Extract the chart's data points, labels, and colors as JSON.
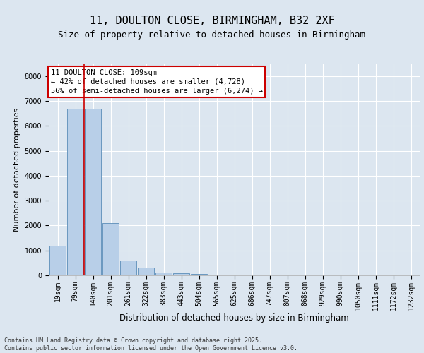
{
  "title1": "11, DOULTON CLOSE, BIRMINGHAM, B32 2XF",
  "title2": "Size of property relative to detached houses in Birmingham",
  "xlabel": "Distribution of detached houses by size in Birmingham",
  "ylabel": "Number of detached properties",
  "categories": [
    "19sqm",
    "79sqm",
    "140sqm",
    "201sqm",
    "261sqm",
    "322sqm",
    "383sqm",
    "443sqm",
    "504sqm",
    "565sqm",
    "625sqm",
    "686sqm",
    "747sqm",
    "807sqm",
    "868sqm",
    "929sqm",
    "990sqm",
    "1050sqm",
    "1111sqm",
    "1172sqm",
    "1232sqm"
  ],
  "values": [
    1200,
    6700,
    6700,
    2100,
    600,
    300,
    100,
    75,
    50,
    30,
    20,
    10,
    8,
    5,
    4,
    3,
    2,
    1,
    1,
    0,
    0
  ],
  "bar_color": "#b8cfe8",
  "bar_edge_color": "#5b8db8",
  "vline_color": "#cc0000",
  "vline_pos": 1.5,
  "annotation_text": "11 DOULTON CLOSE: 109sqm\n← 42% of detached houses are smaller (4,728)\n56% of semi-detached houses are larger (6,274) →",
  "annotation_box_color": "#ffffff",
  "annotation_box_edge": "#cc0000",
  "ylim": [
    0,
    8500
  ],
  "yticks": [
    0,
    1000,
    2000,
    3000,
    4000,
    5000,
    6000,
    7000,
    8000
  ],
  "background_color": "#dce6f0",
  "plot_bg_color": "#dce6f0",
  "footer": "Contains HM Land Registry data © Crown copyright and database right 2025.\nContains public sector information licensed under the Open Government Licence v3.0.",
  "title1_fontsize": 11,
  "title2_fontsize": 9,
  "xlabel_fontsize": 8.5,
  "ylabel_fontsize": 8,
  "tick_fontsize": 7,
  "annotation_fontsize": 7.5
}
